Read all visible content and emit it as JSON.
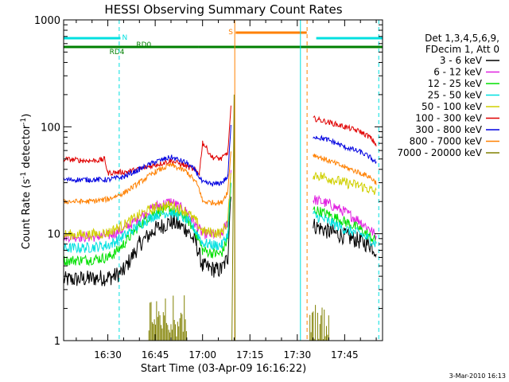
{
  "chart_data": {
    "type": "line",
    "title": "HESSI Observing Summary Count Rates",
    "xlabel": "Start Time (03-Apr-09 16:16:22)",
    "ylabel": "Count Rate (s⁻¹ detector⁻¹)",
    "ylabel_parts": {
      "main": "Count Rate (s",
      "sup1": "-1",
      "mid": " detector",
      "sup2": "-1",
      "end": ")"
    },
    "y_scale": "log",
    "xlim_min": [
      976,
      1077
    ],
    "ylim": [
      1,
      1000
    ],
    "x_ticks": [
      {
        "value": 990,
        "label": "16:30"
      },
      {
        "value": 1005,
        "label": "16:45"
      },
      {
        "value": 1020,
        "label": "17:00"
      },
      {
        "value": 1035,
        "label": "17:15"
      },
      {
        "value": 1050,
        "label": "17:30"
      },
      {
        "value": 1065,
        "label": "17:45"
      }
    ],
    "y_ticks": [
      {
        "value": 1,
        "label": "1"
      },
      {
        "value": 10,
        "label": "10"
      },
      {
        "value": 100,
        "label": "100"
      },
      {
        "value": 1000,
        "label": "1000"
      }
    ],
    "legend_header": [
      "Det 1,3,4,5,6,9,",
      "FDecim 1, Att 0"
    ],
    "legend_position": "right",
    "timestamp": "3-Mar-2010 16:13",
    "series": [
      {
        "name": "3 - 6 keV",
        "color": "#000000",
        "x": [
          976,
          984,
          990,
          992,
          995,
          1000,
          1005,
          1010,
          1015,
          1018,
          1020,
          1024,
          1026,
          1028,
          1029,
          1047,
          1052,
          1055,
          1060,
          1065,
          1070,
          1073,
          1075
        ],
        "y": [
          3.7,
          3.8,
          3.9,
          4.0,
          4.5,
          8,
          11,
          13,
          11,
          8,
          5,
          4.6,
          4.6,
          6,
          26,
          null,
          null,
          12,
          10.5,
          9.5,
          8.5,
          7.8,
          7
        ]
      },
      {
        "name": "6 - 12 keV",
        "color": "#e020e0",
        "x": [
          976,
          984,
          990,
          992,
          995,
          1000,
          1005,
          1010,
          1015,
          1018,
          1020,
          1024,
          1026,
          1028,
          1029,
          1047,
          1052,
          1055,
          1060,
          1065,
          1070,
          1073,
          1075
        ],
        "y": [
          9.5,
          9.3,
          9.6,
          10,
          11,
          14,
          18,
          20,
          16,
          12,
          10,
          9.8,
          9.8,
          13,
          40,
          null,
          null,
          21,
          19,
          16,
          13,
          11,
          9.5
        ]
      },
      {
        "name": "12 - 25 keV",
        "color": "#00e000",
        "x": [
          976,
          984,
          990,
          992,
          995,
          1000,
          1005,
          1010,
          1015,
          1018,
          1020,
          1024,
          1026,
          1028,
          1029,
          1047,
          1052,
          1055,
          1060,
          1065,
          1070,
          1073,
          1075
        ],
        "y": [
          5.6,
          5.7,
          6.0,
          6.5,
          8,
          12,
          16,
          17,
          14,
          10,
          7,
          6.5,
          6.5,
          9,
          28,
          null,
          null,
          17,
          15,
          13,
          11,
          9.5,
          8.5
        ]
      },
      {
        "name": "25 - 50 keV",
        "color": "#00e0e0",
        "x": [
          976,
          984,
          990,
          992,
          995,
          1000,
          1005,
          1010,
          1015,
          1018,
          1020,
          1024,
          1026,
          1028,
          1029,
          1047,
          1052,
          1055,
          1060,
          1065,
          1070,
          1073,
          1075
        ],
        "y": [
          7.3,
          7.4,
          7.8,
          8.3,
          9.5,
          12,
          15,
          16,
          13.5,
          10.5,
          8.2,
          7.8,
          7.8,
          10,
          30,
          null,
          null,
          15,
          13,
          11,
          10,
          8.8,
          8
        ]
      },
      {
        "name": "50 - 100 keV",
        "color": "#d0d000",
        "x": [
          976,
          984,
          990,
          992,
          995,
          1000,
          1005,
          1010,
          1015,
          1018,
          1020,
          1024,
          1026,
          1028,
          1029,
          1047,
          1052,
          1055,
          1060,
          1065,
          1070,
          1073,
          1075
        ],
        "y": [
          9.8,
          9.8,
          10.2,
          11,
          12,
          15,
          17.5,
          18.5,
          16,
          13,
          10.5,
          10.2,
          10.2,
          13,
          35,
          null,
          null,
          36,
          33,
          30,
          28,
          26,
          24
        ]
      },
      {
        "name": "100 - 300 keV",
        "color": "#e00000",
        "x": [
          976,
          984,
          988,
          989,
          990,
          996,
          1000,
          1005,
          1010,
          1014,
          1017,
          1019,
          1020,
          1023,
          1026,
          1028,
          1029,
          1047,
          1052,
          1055,
          1060,
          1065,
          1070,
          1073,
          1075
        ],
        "y": [
          50,
          48,
          49,
          50,
          37,
          38,
          40,
          44,
          48,
          44,
          40,
          37,
          72,
          52,
          50,
          58,
          150,
          null,
          null,
          120,
          110,
          100,
          90,
          80,
          68
        ]
      },
      {
        "name": "300 - 800 keV",
        "color": "#0000e0",
        "x": [
          976,
          984,
          990,
          995,
          1000,
          1005,
          1010,
          1015,
          1018,
          1020,
          1024,
          1026,
          1028,
          1029,
          1047,
          1052,
          1055,
          1060,
          1065,
          1070,
          1073,
          1075
        ],
        "y": [
          32,
          32,
          32,
          34,
          40,
          47,
          52,
          46,
          38,
          30,
          29,
          30,
          34,
          100,
          null,
          null,
          82,
          75,
          65,
          58,
          52,
          46
        ]
      },
      {
        "name": "800 - 7000 keV",
        "color": "#ff8000",
        "x": [
          976,
          984,
          990,
          995,
          1000,
          1005,
          1010,
          1015,
          1018,
          1019,
          1020,
          1024,
          1026,
          1028,
          1029,
          1047,
          1052,
          1055,
          1060,
          1065,
          1070,
          1073,
          1075
        ],
        "y": [
          20,
          20,
          21,
          24,
          30,
          38,
          44,
          38,
          30,
          26,
          20,
          19.5,
          19.5,
          25,
          60,
          null,
          null,
          55,
          48,
          42,
          37,
          34,
          30
        ]
      },
      {
        "name": "7000 - 20000 keV",
        "color": "#808000",
        "x": [
          976,
          1003,
          1003,
          1015,
          1015,
          1029,
          1029,
          1030,
          1030,
          1054,
          1054,
          1060,
          1060,
          1075
        ],
        "y": [
          null,
          null,
          1.9,
          1.8,
          null,
          null,
          1.2,
          200,
          null,
          null,
          1.8,
          1.6,
          null,
          null
        ]
      }
    ],
    "state_bars": [
      {
        "label": "N",
        "color": "#00e0e0",
        "segments": [
          [
            976,
            994
          ],
          [
            1056,
            1077
          ]
        ],
        "label_x": 994.5
      },
      {
        "label": "S",
        "color": "#ff8000",
        "segments": [
          [
            1030.5,
            1053
          ]
        ],
        "label_x": 1028.2
      },
      {
        "label": "RD0",
        "color": "#008000",
        "segments": [
          [
            1018.7,
            1077
          ]
        ],
        "label_x": 999
      },
      {
        "label": "RD4",
        "color": "#008000",
        "segments": [
          [
            976,
            1018.7
          ]
        ],
        "label_x": 990.5
      }
    ],
    "vertical_markers": [
      {
        "x": 993.6,
        "color": "#00e0e0",
        "style": "dashed"
      },
      {
        "x": 1030.2,
        "color": "#ff8000",
        "style": "solid"
      },
      {
        "x": 1051,
        "color": "#00e0e0",
        "style": "solid"
      },
      {
        "x": 1053.1,
        "color": "#ff8000",
        "style": "dashed"
      },
      {
        "x": 1075.8,
        "color": "#00e0e0",
        "style": "dashed"
      }
    ]
  }
}
